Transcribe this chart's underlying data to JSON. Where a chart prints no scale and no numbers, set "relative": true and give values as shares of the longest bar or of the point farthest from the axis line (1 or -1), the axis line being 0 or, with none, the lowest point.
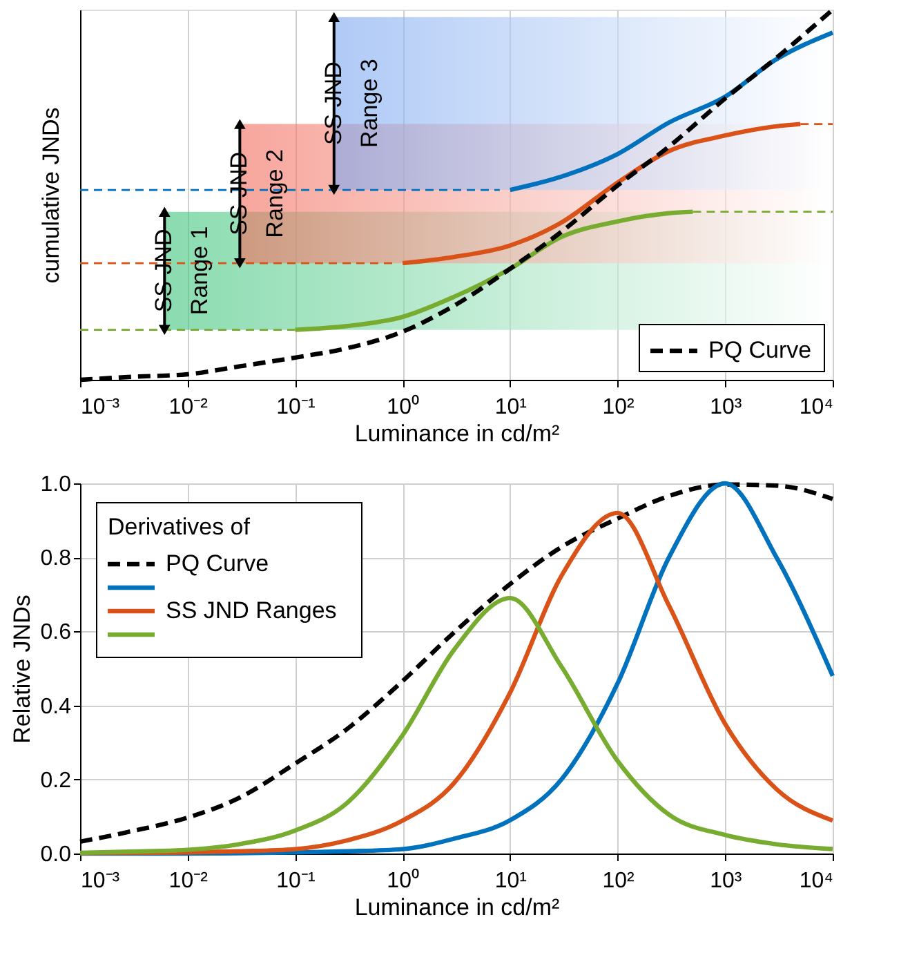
{
  "chart_data": [
    {
      "type": "line",
      "relative": true,
      "xlabel": "Luminance in cd/m²",
      "ylabel": "cumulative JNDs",
      "log": "x",
      "xlim": [
        0.001,
        10000
      ],
      "xticks": [
        {
          "value": 0.001,
          "label": "10⁻³"
        },
        {
          "value": 0.01,
          "label": "10⁻²"
        },
        {
          "value": 0.1,
          "label": "10⁻¹"
        },
        {
          "value": 1,
          "label": "10⁰"
        },
        {
          "value": 10,
          "label": "10¹"
        },
        {
          "value": 100,
          "label": "10²"
        },
        {
          "value": 1000,
          "label": "10³"
        },
        {
          "value": 10000,
          "label": "10⁴"
        }
      ],
      "tick_labels": "x",
      "grid": "x",
      "legend": "bottom right",
      "bands": [
        {
          "axis": "y",
          "from": 0.135,
          "to": 0.454,
          "color": "#3cc47a"
        },
        {
          "axis": "y",
          "from": 0.315,
          "to": 0.691,
          "color": "#f26b5b"
        },
        {
          "axis": "y",
          "from": 0.513,
          "to": 0.98,
          "color": "#7aa7f0"
        }
      ],
      "annotations": [
        {
          "text": "SS JND\nRange 1",
          "x": 0.0061,
          "y": 0.295
        },
        {
          "text": "SS JND\nRange 2",
          "x": 0.0306,
          "y": 0.503
        },
        {
          "text": "SS JND\nRange 3",
          "x": 0.23,
          "y": 0.747
        }
      ],
      "series": [
        {
          "color": "#0072bd",
          "line_style": "dashed",
          "x": [
            0.001,
            8
          ],
          "values": [
            0.513,
            0.513
          ]
        },
        {
          "color": "#d95319",
          "line_style": "dashed",
          "x": [
            0.001,
            0.9
          ],
          "values": [
            0.315,
            0.315
          ]
        },
        {
          "color": "#d95319",
          "line_style": "dashed",
          "x": [
            5000,
            10000
          ],
          "values": [
            0.691,
            0.691
          ]
        },
        {
          "color": "#77ac30",
          "line_style": "dashed",
          "x": [
            0.001,
            0.1
          ],
          "values": [
            0.135,
            0.135
          ]
        },
        {
          "color": "#77ac30",
          "line_style": "dashed",
          "x": [
            500,
            10000
          ],
          "values": [
            0.454,
            0.454
          ]
        },
        {
          "color": "#0072bd",
          "line_style": "solid",
          "x": [
            10,
            30,
            100,
            300,
            1000,
            3000,
            10000
          ],
          "values": [
            0.513,
            0.549,
            0.61,
            0.695,
            0.765,
            0.866,
            0.938
          ]
        },
        {
          "color": "#d95319",
          "line_style": "solid",
          "x": [
            1,
            3,
            10,
            30,
            100,
            300,
            1000,
            3000,
            5000
          ],
          "values": [
            0.315,
            0.332,
            0.363,
            0.425,
            0.533,
            0.618,
            0.66,
            0.685,
            0.691
          ]
        },
        {
          "color": "#77ac30",
          "line_style": "solid",
          "x": [
            0.1,
            0.3,
            1,
            3,
            10,
            30,
            100,
            300,
            500
          ],
          "values": [
            0.135,
            0.145,
            0.17,
            0.224,
            0.3,
            0.386,
            0.428,
            0.45,
            0.454
          ]
        },
        {
          "name": "PQ Curve",
          "color": "#000000",
          "line_style": "dashed",
          "x": [
            0.001,
            0.003,
            0.01,
            0.03,
            0.1,
            0.3,
            1,
            3,
            10,
            30,
            100,
            300,
            1000,
            3000,
            10000
          ],
          "values": [
            0,
            0.008,
            0.015,
            0.036,
            0.06,
            0.085,
            0.13,
            0.2,
            0.3,
            0.4,
            0.525,
            0.63,
            0.76,
            0.87,
            1.0
          ]
        }
      ]
    },
    {
      "type": "line",
      "xlabel": "Luminance in cd/m²",
      "ylabel": "Relative JNDs",
      "log": "x",
      "xlim": [
        0.001,
        10000
      ],
      "xticks": [
        {
          "value": 0.001,
          "label": "10⁻³"
        },
        {
          "value": 0.01,
          "label": "10⁻²"
        },
        {
          "value": 0.1,
          "label": "10⁻¹"
        },
        {
          "value": 1,
          "label": "10⁰"
        },
        {
          "value": 10,
          "label": "10¹"
        },
        {
          "value": 100,
          "label": "10²"
        },
        {
          "value": 1000,
          "label": "10³"
        },
        {
          "value": 10000,
          "label": "10⁴"
        }
      ],
      "ylim": [
        0,
        1
      ],
      "yticks": [
        {
          "value": 0,
          "label": "0.0"
        },
        0.2,
        0.4,
        0.6,
        0.8,
        {
          "value": 1,
          "label": "1.0"
        }
      ],
      "grid": true,
      "legend": "top left",
      "legend_title": "Derivatives of",
      "x": [
        0.001,
        0.003,
        0.01,
        0.03,
        0.1,
        0.3,
        1,
        3,
        10,
        30,
        100,
        300,
        1000,
        3000,
        10000
      ],
      "series": [
        {
          "name": "PQ Curve",
          "color": "#000000",
          "line_style": "dashed",
          "values": [
            0.032,
            0.06,
            0.097,
            0.15,
            0.243,
            0.335,
            0.466,
            0.597,
            0.728,
            0.828,
            0.905,
            0.966,
            0.997,
            0.994,
            0.958
          ]
        },
        {
          "color": "#0072bd",
          "line_style": "solid",
          "values": [
            0,
            0,
            0,
            0.001,
            0.003,
            0.006,
            0.012,
            0.04,
            0.09,
            0.2,
            0.46,
            0.8,
            1.0,
            0.8,
            0.48
          ]
        },
        {
          "name": "SS JND Ranges",
          "color": "#d95319",
          "line_style": "solid",
          "values": [
            0.001,
            0.002,
            0.003,
            0.006,
            0.012,
            0.035,
            0.089,
            0.19,
            0.435,
            0.75,
            0.92,
            0.67,
            0.35,
            0.174,
            0.089
          ]
        },
        {
          "color": "#77ac30",
          "line_style": "solid",
          "values": [
            0.002,
            0.005,
            0.01,
            0.025,
            0.062,
            0.135,
            0.32,
            0.55,
            0.69,
            0.505,
            0.25,
            0.105,
            0.05,
            0.025,
            0.012
          ]
        }
      ]
    }
  ]
}
